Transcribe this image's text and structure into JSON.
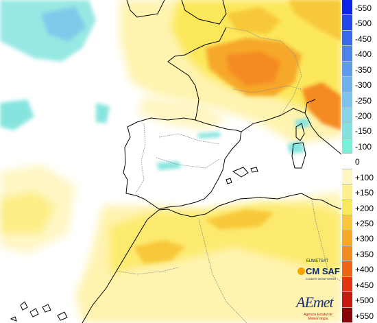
{
  "legend": {
    "labels": [
      "-550",
      "-500",
      "-450",
      "-400",
      "-350",
      "-300",
      "-250",
      "-200",
      "-150",
      "-100",
      "0",
      "+100",
      "+150",
      "+200",
      "+250",
      "+300",
      "+350",
      "+400",
      "+450",
      "+500",
      "+550"
    ],
    "colors": [
      "#0b24e8",
      "#2548ea",
      "#3a69ec",
      "#4e83ec",
      "#5f9bec",
      "#6fb1ec",
      "#7ec3ec",
      "#86d5e8",
      "#83e2df",
      "#7cefd8",
      "#ffffff",
      "#fff6c4",
      "#fdf08e",
      "#fbe85a",
      "#f8c83a",
      "#f6a82c",
      "#f48a22",
      "#f06418",
      "#e23612",
      "#c81a10",
      "#8a0606"
    ]
  },
  "logos": {
    "cmsaf_org": "EUMETSAT",
    "cmsaf_name": "CM SAF",
    "cmsaf_sub": "CLIMATE MONITORING",
    "aemet_name": "AEmet",
    "aemet_sub": "Agencia Estatal de Meteorología"
  }
}
